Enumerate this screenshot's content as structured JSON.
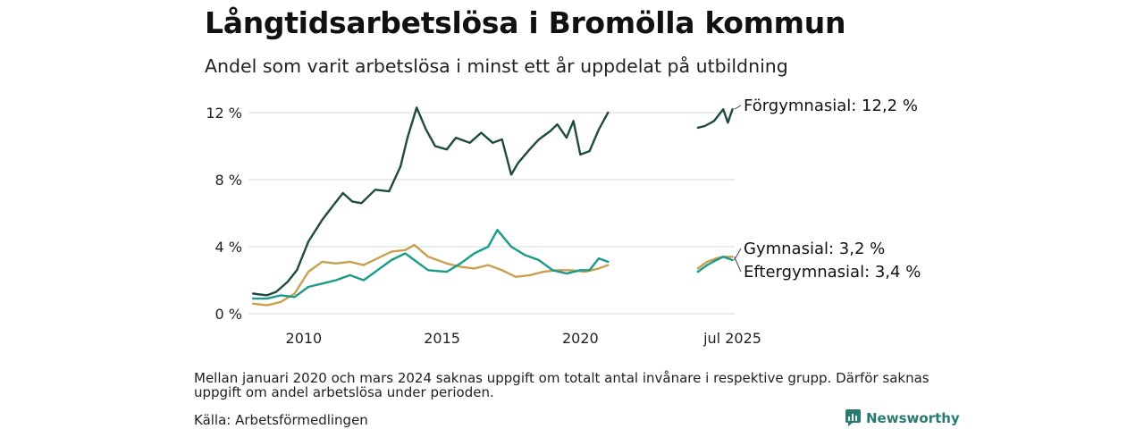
{
  "header": {
    "title": "Långtidsarbetslösa i Bromölla kommun",
    "subtitle": "Andel som varit arbetslösa i minst ett år uppdelat på utbildning"
  },
  "footer": {
    "note": "Mellan januari 2020 och mars 2024 saknas uppgift om totalt antal invånare i respektive grupp. Därför saknas uppgift om andel arbetslösa under perioden.",
    "source": "Källa: Arbetsförmedlingen",
    "brand": "Newsworthy"
  },
  "colors": {
    "forgymnasial": "#1e4a40",
    "gymnasial": "#1a9a88",
    "eftergymnasial": "#c9a04e",
    "grid": "#d9d9d9",
    "brand": "#2a7a72"
  },
  "chart_data": {
    "type": "line",
    "x_ticks": [
      "2010",
      "2015",
      "2020",
      "jul 2025"
    ],
    "y_ticks": [
      "0 %",
      "4 %",
      "8 %",
      "12 %"
    ],
    "ylim": [
      0,
      12
    ],
    "grid": true,
    "series": [
      {
        "name": "Förgymnasial",
        "end_label": "Förgymnasial: 12,2 %",
        "color_key": "forgymnasial",
        "segments": [
          [
            [
              "2008-03",
              1.2
            ],
            [
              "2008-09",
              1.1
            ],
            [
              "2009-01",
              1.3
            ],
            [
              "2009-06",
              1.9
            ],
            [
              "2009-10",
              2.6
            ],
            [
              "2010-03",
              4.3
            ],
            [
              "2010-09",
              5.6
            ],
            [
              "2011-02",
              6.5
            ],
            [
              "2011-06",
              7.2
            ],
            [
              "2011-10",
              6.7
            ],
            [
              "2012-02",
              6.6
            ],
            [
              "2012-08",
              7.4
            ],
            [
              "2013-02",
              7.3
            ],
            [
              "2013-07",
              8.8
            ],
            [
              "2013-10",
              10.5
            ],
            [
              "2014-02",
              12.3
            ],
            [
              "2014-06",
              11.0
            ],
            [
              "2014-10",
              10.0
            ],
            [
              "2015-03",
              9.8
            ],
            [
              "2015-07",
              10.5
            ],
            [
              "2016-01",
              10.2
            ],
            [
              "2016-06",
              10.8
            ],
            [
              "2016-11",
              10.2
            ],
            [
              "2017-03",
              10.4
            ],
            [
              "2017-07",
              8.3
            ],
            [
              "2017-10",
              9.0
            ],
            [
              "2018-03",
              9.8
            ],
            [
              "2018-07",
              10.4
            ],
            [
              "2018-12",
              10.9
            ],
            [
              "2019-03",
              11.3
            ],
            [
              "2019-07",
              10.5
            ],
            [
              "2019-10",
              11.5
            ],
            [
              "2020-01",
              9.5
            ],
            [
              "2020-05",
              9.7
            ],
            [
              "2020-09",
              11.0
            ],
            [
              "2021-01",
              12.0
            ]
          ],
          [
            [
              "2024-04",
              11.1
            ],
            [
              "2024-07",
              11.2
            ],
            [
              "2024-11",
              11.5
            ],
            [
              "2025-03",
              12.2
            ],
            [
              "2025-05",
              11.4
            ],
            [
              "2025-07",
              12.2
            ]
          ]
        ]
      },
      {
        "name": "Gymnasial",
        "end_label": "Gymnasial:  3,2 %",
        "color_key": "gymnasial",
        "segments": [
          [
            [
              "2008-03",
              0.9
            ],
            [
              "2008-09",
              0.9
            ],
            [
              "2009-03",
              1.1
            ],
            [
              "2009-09",
              1.0
            ],
            [
              "2010-03",
              1.6
            ],
            [
              "2010-09",
              1.8
            ],
            [
              "2011-03",
              2.0
            ],
            [
              "2011-09",
              2.3
            ],
            [
              "2012-03",
              2.0
            ],
            [
              "2012-09",
              2.6
            ],
            [
              "2013-03",
              3.2
            ],
            [
              "2013-09",
              3.6
            ],
            [
              "2014-03",
              3.0
            ],
            [
              "2014-07",
              2.6
            ],
            [
              "2015-03",
              2.5
            ],
            [
              "2015-09",
              3.0
            ],
            [
              "2016-03",
              3.6
            ],
            [
              "2016-09",
              4.0
            ],
            [
              "2017-01",
              5.0
            ],
            [
              "2017-07",
              4.0
            ],
            [
              "2018-01",
              3.5
            ],
            [
              "2018-07",
              3.2
            ],
            [
              "2019-01",
              2.6
            ],
            [
              "2019-07",
              2.4
            ],
            [
              "2020-01",
              2.6
            ],
            [
              "2020-05",
              2.6
            ],
            [
              "2020-09",
              3.3
            ],
            [
              "2021-01",
              3.1
            ]
          ],
          [
            [
              "2024-04",
              2.5
            ],
            [
              "2024-08",
              2.9
            ],
            [
              "2024-12",
              3.2
            ],
            [
              "2025-03",
              3.4
            ],
            [
              "2025-07",
              3.2
            ]
          ]
        ]
      },
      {
        "name": "Eftergymnasial",
        "end_label": "Eftergymnasial:  3,4 %",
        "color_key": "eftergymnasial",
        "segments": [
          [
            [
              "2008-03",
              0.6
            ],
            [
              "2008-09",
              0.5
            ],
            [
              "2009-03",
              0.7
            ],
            [
              "2009-09",
              1.2
            ],
            [
              "2010-03",
              2.5
            ],
            [
              "2010-09",
              3.1
            ],
            [
              "2011-03",
              3.0
            ],
            [
              "2011-09",
              3.1
            ],
            [
              "2012-03",
              2.9
            ],
            [
              "2012-09",
              3.3
            ],
            [
              "2013-03",
              3.7
            ],
            [
              "2013-09",
              3.8
            ],
            [
              "2014-01",
              4.1
            ],
            [
              "2014-07",
              3.4
            ],
            [
              "2015-03",
              3.0
            ],
            [
              "2015-09",
              2.8
            ],
            [
              "2016-03",
              2.7
            ],
            [
              "2016-09",
              2.9
            ],
            [
              "2017-03",
              2.6
            ],
            [
              "2017-09",
              2.2
            ],
            [
              "2018-03",
              2.3
            ],
            [
              "2018-09",
              2.5
            ],
            [
              "2019-03",
              2.6
            ],
            [
              "2019-09",
              2.6
            ],
            [
              "2020-03",
              2.5
            ],
            [
              "2020-09",
              2.7
            ],
            [
              "2021-01",
              2.9
            ]
          ],
          [
            [
              "2024-04",
              2.7
            ],
            [
              "2024-08",
              3.1
            ],
            [
              "2024-12",
              3.3
            ],
            [
              "2025-03",
              3.4
            ],
            [
              "2025-07",
              3.4
            ]
          ]
        ]
      }
    ]
  }
}
